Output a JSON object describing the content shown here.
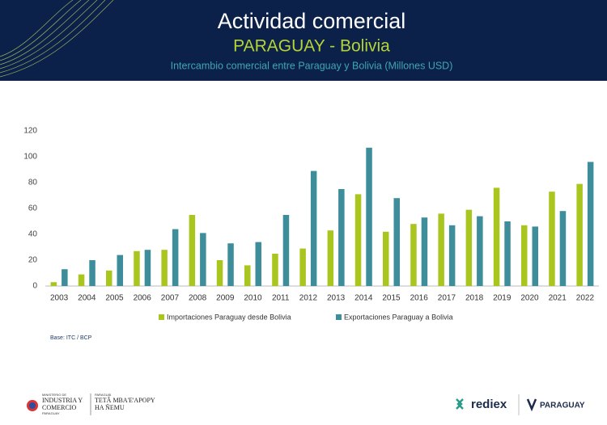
{
  "chart_data": {
    "type": "bar",
    "title": "Actividad comercial",
    "subtitle": "PARAGUAY - Bolivia",
    "description": "Intercambio comercial entre Paraguay y Bolivia (Millones USD)",
    "categories": [
      "2003",
      "2004",
      "2005",
      "2006",
      "2007",
      "2008",
      "2009",
      "2010",
      "2011",
      "2012",
      "2013",
      "2014",
      "2015",
      "2016",
      "2017",
      "2018",
      "2019",
      "2020",
      "2021",
      "2022"
    ],
    "series": [
      {
        "name": "Importaciones Paraguay desde Bolivia",
        "color": "#a9c61f",
        "values": [
          3,
          9,
          12,
          27,
          28,
          55,
          20,
          16,
          25,
          29,
          43,
          71,
          42,
          48,
          56,
          59,
          76,
          47,
          73,
          79
        ]
      },
      {
        "name": "Exportaciones Paraguay a Bolivia",
        "color": "#3d8e9a",
        "values": [
          13,
          20,
          24,
          28,
          44,
          41,
          33,
          34,
          55,
          89,
          75,
          107,
          68,
          53,
          47,
          54,
          50,
          46,
          58,
          96
        ]
      }
    ],
    "ylim": [
      0,
      120
    ],
    "yticks": [
      0,
      20,
      40,
      60,
      80,
      100,
      120
    ],
    "note": "Base: ITC / BCP"
  },
  "footer": {
    "ministry_top": "MINISTERIO DE",
    "ministry_1": "INDUSTRIA Y",
    "ministry_2": "COMERCIO",
    "ministry_country": "PARAGUAY",
    "gov_top": "PARAGUÁI",
    "gov_1": "TETÃ MBA'E'APOPY",
    "gov_2": "HA ÑEMU",
    "rediex": "rediex",
    "paraguay": "PARAGUAY"
  }
}
